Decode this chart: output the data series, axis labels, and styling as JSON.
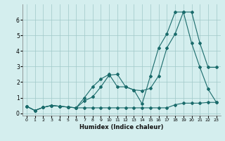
{
  "xlabel": "Humidex (Indice chaleur)",
  "background_color": "#d4eeee",
  "grid_color": "#a0c8c8",
  "line_color": "#1a6b6b",
  "xlim": [
    -0.5,
    23.5
  ],
  "ylim": [
    -0.15,
    7.0
  ],
  "xticks": [
    0,
    1,
    2,
    3,
    4,
    5,
    6,
    7,
    8,
    9,
    10,
    11,
    12,
    13,
    14,
    15,
    16,
    17,
    18,
    19,
    20,
    21,
    22,
    23
  ],
  "yticks": [
    0,
    1,
    2,
    3,
    4,
    5,
    6
  ],
  "line1_x": [
    0,
    1,
    2,
    3,
    4,
    5,
    6,
    7,
    8,
    9,
    10,
    11,
    12,
    13,
    14,
    15,
    16,
    17,
    18,
    19,
    20,
    21,
    22,
    23
  ],
  "line1_y": [
    0.45,
    0.18,
    0.38,
    0.5,
    0.45,
    0.4,
    0.35,
    0.8,
    1.05,
    1.7,
    2.45,
    2.5,
    1.7,
    1.5,
    1.45,
    1.6,
    2.4,
    4.2,
    5.1,
    6.5,
    6.5,
    4.5,
    2.95,
    2.95
  ],
  "line2_x": [
    0,
    1,
    2,
    3,
    4,
    5,
    6,
    7,
    8,
    9,
    10,
    11,
    12,
    13,
    14,
    15,
    16,
    17,
    18,
    19,
    20,
    21,
    22,
    23
  ],
  "line2_y": [
    0.45,
    0.18,
    0.38,
    0.5,
    0.45,
    0.4,
    0.35,
    1.0,
    1.7,
    2.2,
    2.5,
    1.7,
    1.7,
    1.5,
    0.6,
    2.4,
    4.2,
    5.1,
    6.5,
    6.5,
    4.5,
    2.95,
    1.55,
    0.7
  ],
  "line3_x": [
    0,
    1,
    2,
    3,
    4,
    5,
    6,
    7,
    8,
    9,
    10,
    11,
    12,
    13,
    14,
    15,
    16,
    17,
    18,
    19,
    20,
    21,
    22,
    23
  ],
  "line3_y": [
    0.45,
    0.18,
    0.38,
    0.5,
    0.45,
    0.4,
    0.35,
    0.35,
    0.35,
    0.35,
    0.35,
    0.35,
    0.35,
    0.35,
    0.35,
    0.35,
    0.35,
    0.35,
    0.55,
    0.65,
    0.65,
    0.65,
    0.7,
    0.7
  ]
}
